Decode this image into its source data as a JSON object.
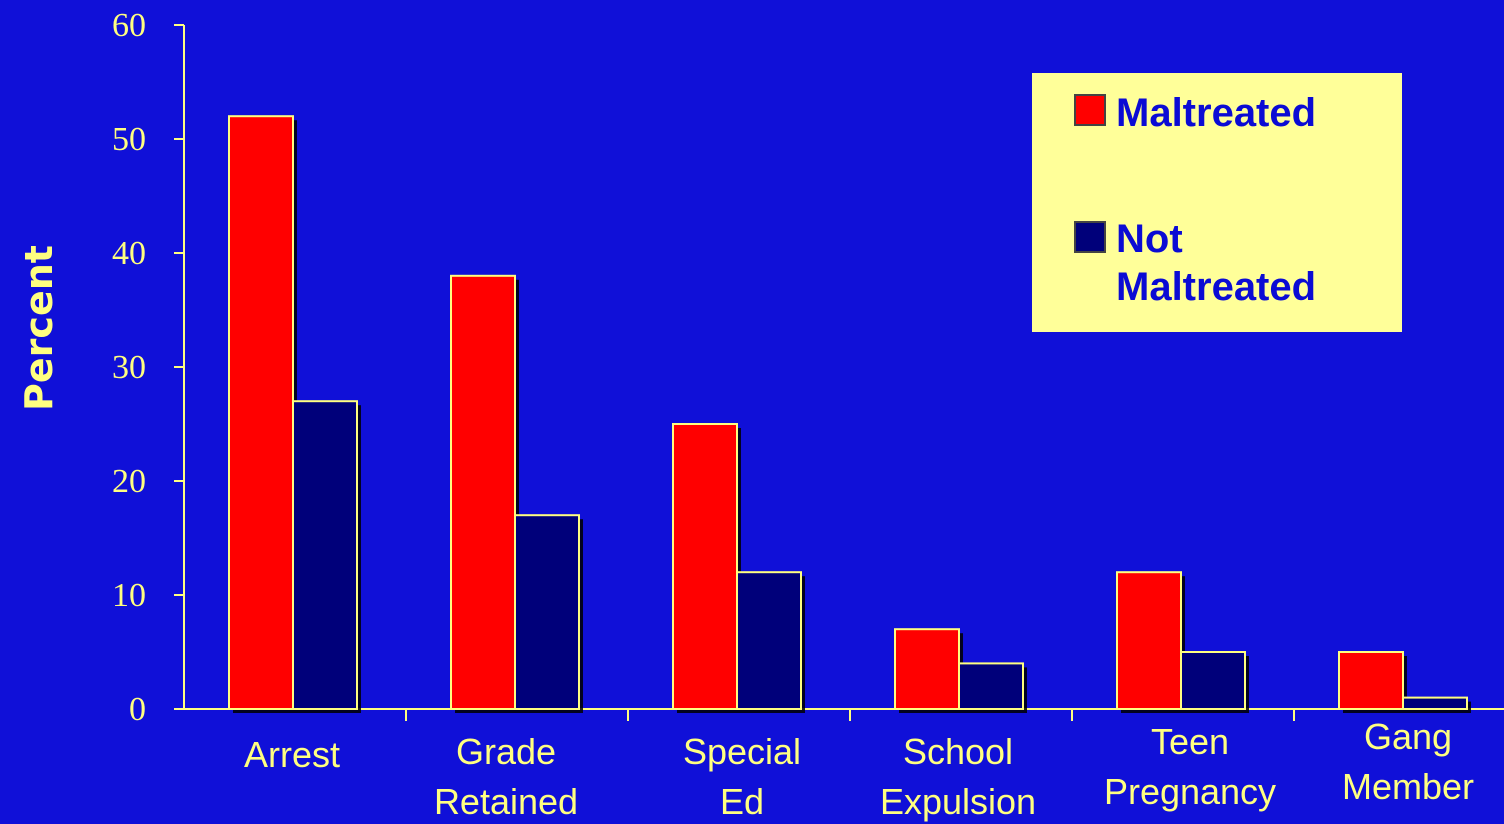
{
  "colors": {
    "background": "#1010d8",
    "maltreated": "#ff0000",
    "not_maltreated": "#00007a",
    "axis": "#ffff80",
    "legend_bg": "#ffff99",
    "legend_text": "#0b0bd4"
  },
  "chart_data": {
    "type": "bar",
    "title": "",
    "xlabel": "",
    "ylabel": "Percent",
    "ylim": [
      0,
      60
    ],
    "yticks": [
      "0",
      "10",
      "20",
      "30",
      "40",
      "50",
      "60"
    ],
    "categories": [
      [
        "Arrest"
      ],
      [
        "Grade",
        "Retained"
      ],
      [
        "Special",
        "Ed"
      ],
      [
        "School",
        "Expulsion"
      ],
      [
        "Teen",
        "Pregnancy"
      ],
      [
        "Gang",
        "Member"
      ]
    ],
    "series": [
      {
        "name": "Maltreated",
        "values": [
          52,
          38,
          25,
          7,
          12,
          5
        ]
      },
      {
        "name": "Not Maltreated",
        "values": [
          27,
          17,
          12,
          4,
          5,
          1
        ]
      }
    ],
    "legend": {
      "placement": "top-right",
      "entries": [
        [
          "Maltreated"
        ],
        [
          "Not",
          "Maltreated"
        ]
      ]
    },
    "grid": false
  }
}
